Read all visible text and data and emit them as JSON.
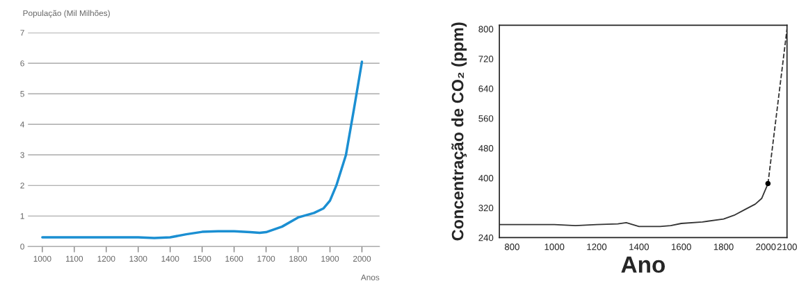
{
  "chart_data": [
    {
      "type": "line",
      "ylabel": "População (Mil Milhões)",
      "xlabel": "Anos",
      "xlim": [
        955,
        2055
      ],
      "ylim": [
        0,
        7
      ],
      "xticks": [
        1000,
        1100,
        1200,
        1300,
        1400,
        1500,
        1600,
        1700,
        1800,
        1900,
        2000
      ],
      "yticks": [
        0,
        1,
        2,
        3,
        4,
        5,
        6,
        7
      ],
      "grid": "y",
      "series": [
        {
          "color": "#1b8fd2",
          "line_style": "solid",
          "x": [
            1000,
            1100,
            1200,
            1300,
            1350,
            1400,
            1450,
            1500,
            1550,
            1600,
            1650,
            1680,
            1700,
            1750,
            1800,
            1850,
            1880,
            1900,
            1920,
            1950,
            1975,
            2000
          ],
          "values": [
            0.3,
            0.3,
            0.3,
            0.3,
            0.28,
            0.3,
            0.4,
            0.48,
            0.5,
            0.5,
            0.47,
            0.45,
            0.47,
            0.65,
            0.95,
            1.1,
            1.25,
            1.5,
            2.0,
            3.0,
            4.5,
            6.05
          ]
        }
      ]
    },
    {
      "type": "line",
      "ylabel": "Concentração de CO₂ (ppm)",
      "xlabel": "Ano",
      "xlim": [
        740,
        2100
      ],
      "ylim": [
        240,
        810
      ],
      "xticks": [
        800,
        1000,
        1200,
        1400,
        1600,
        1800,
        2000,
        2100
      ],
      "yticks": [
        240,
        320,
        400,
        480,
        560,
        640,
        720,
        800
      ],
      "grid": false,
      "series": [
        {
          "color": "#333333",
          "line_style": "solid",
          "x": [
            740,
            800,
            1000,
            1100,
            1200,
            1300,
            1340,
            1400,
            1500,
            1550,
            1600,
            1700,
            1800,
            1850,
            1900,
            1950,
            1980,
            2010
          ],
          "values": [
            275,
            275,
            275,
            272,
            275,
            277,
            280,
            270,
            270,
            272,
            278,
            282,
            290,
            300,
            315,
            330,
            345,
            385
          ]
        },
        {
          "color": "#333333",
          "line_style": "dashed",
          "x": [
            2010,
            2100
          ],
          "values": [
            385,
            800
          ]
        },
        {
          "type": "scatter",
          "color": "#000000",
          "x": [
            2010
          ],
          "values": [
            385
          ]
        }
      ]
    }
  ]
}
